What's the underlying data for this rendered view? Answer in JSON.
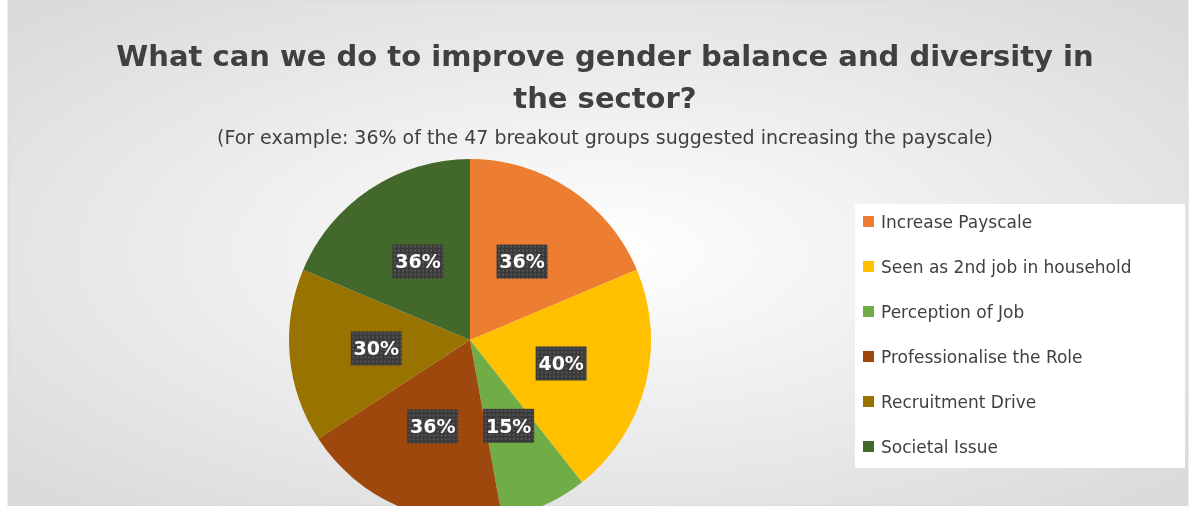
{
  "chart_data": {
    "type": "pie",
    "title": "What can we do to improve gender balance and diversity in the sector?",
    "subtitle": "(For example: 36% of the 47 breakout groups suggested increasing the payscale)",
    "categories": [
      "Increase Payscale",
      "Seen as 2nd job in household",
      "Perception of Job",
      "Professionalise the Role",
      "Recruitment Drive",
      "Societal Issue"
    ],
    "values": [
      36,
      40,
      15,
      36,
      30,
      36
    ],
    "value_labels": [
      "36%",
      "40%",
      "15%",
      "36%",
      "30%",
      "36%"
    ],
    "colors": [
      "#ed7d31",
      "#ffc000",
      "#70ad47",
      "#9e480e",
      "#997300",
      "#43682b"
    ],
    "legend": "right"
  }
}
